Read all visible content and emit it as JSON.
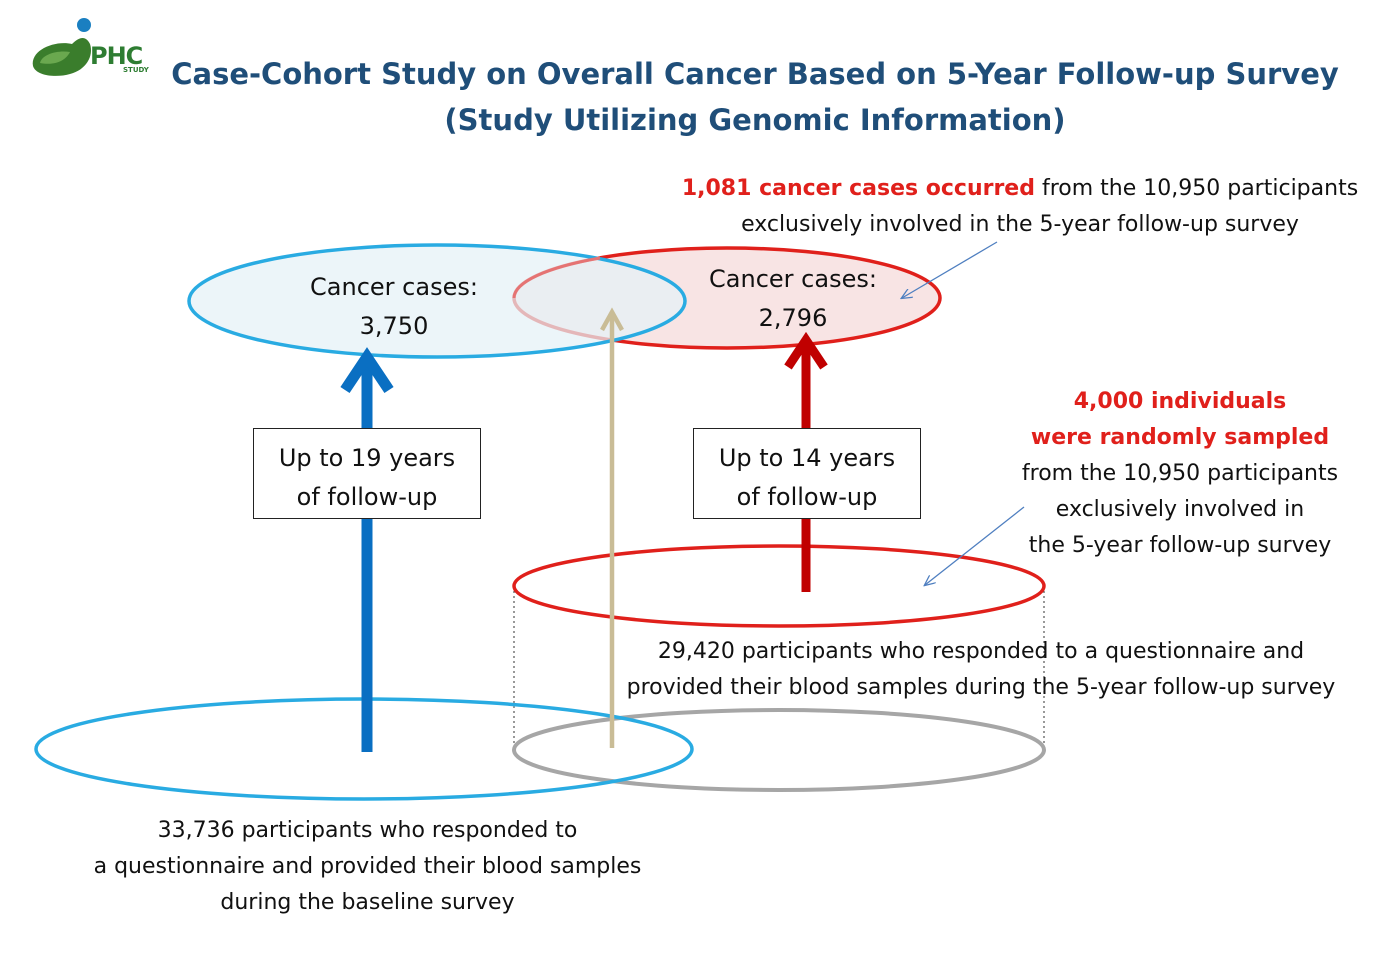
{
  "logo": {
    "name": "PHC",
    "sub": "STUDY"
  },
  "title": {
    "line1": "Case-Cohort Study on Overall Cancer Based on 5-Year Follow-up Survey",
    "line2": "(Study Utilizing Genomic Information)"
  },
  "baseline_cases": {
    "line1": "Cancer cases:",
    "line2": "3,750"
  },
  "followup_cases": {
    "line1": "Cancer cases:",
    "line2": "2,796"
  },
  "box_19": {
    "line1": "Up to 19 years",
    "line2": "of follow-up"
  },
  "box_14": {
    "line1": "Up to 14 years",
    "line2": "of follow-up"
  },
  "note_cases": {
    "highlight": "1,081 cancer cases occurred",
    "rest": " from the 10,950 participants",
    "line2": "exclusively involved in the 5-year follow-up survey"
  },
  "note_sample": {
    "line1": "4,000 individuals",
    "line2": "were randomly sampled",
    "line3": "from the 10,950 participants",
    "line4": "exclusively involved in",
    "line5": "the 5-year follow-up survey"
  },
  "followup_participants": {
    "line1": "29,420 participants who responded to a questionnaire and",
    "line2": "provided their blood samples during the 5-year follow-up survey"
  },
  "baseline_participants": {
    "line1": "33,736 participants who responded to",
    "line2": "a questionnaire and provided their blood samples",
    "line3": "during the baseline survey"
  },
  "colors": {
    "title": "#1f4e79",
    "blue": "#29abe2",
    "blue_arrow": "#0a6fc2",
    "red": "#e0201b",
    "red_arrow": "#c00000",
    "tan_arrow": "#c9bc96",
    "gray": "#a6a6a6"
  }
}
